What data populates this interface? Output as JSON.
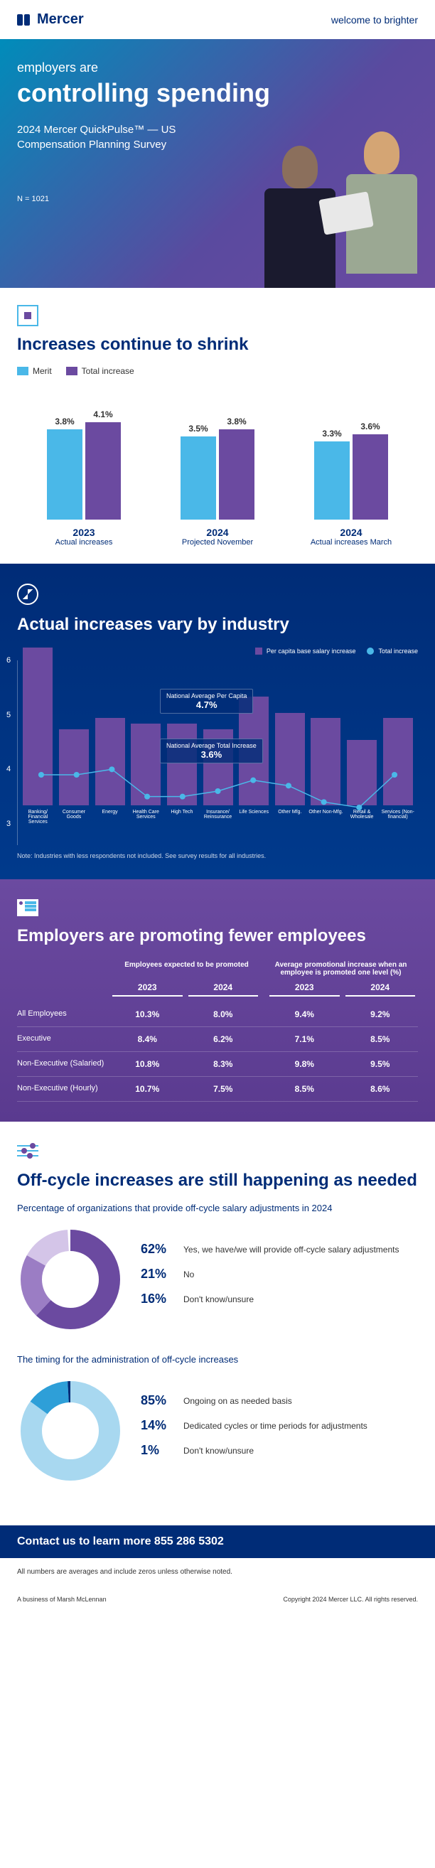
{
  "header": {
    "logo": "Mercer",
    "tagline": "welcome to brighter"
  },
  "hero": {
    "sub": "employers are",
    "title": "controlling spending",
    "desc": "2024 Mercer QuickPulse™ — US Compensation Planning Survey",
    "n": "N = 1021"
  },
  "section1": {
    "title": "Increases continue to shrink",
    "legend": {
      "merit": "Merit",
      "total": "Total increase",
      "merit_color": "#4ab8e8",
      "total_color": "#6b4aa0"
    },
    "groups": [
      {
        "year": "2023",
        "sub": "Actual increases",
        "merit": 3.8,
        "total": 4.1
      },
      {
        "year": "2024",
        "sub": "Projected November",
        "merit": 3.5,
        "total": 3.8
      },
      {
        "year": "2024",
        "sub": "Actual increases March",
        "merit": 3.3,
        "total": 3.6
      }
    ],
    "ymax": 4.5
  },
  "industry": {
    "title": "Actual increases vary by industry",
    "legend": {
      "bar": "Per capita base salary increase",
      "line": "Total increase"
    },
    "avg1": {
      "label": "National Average Per Capita",
      "val": "4.7%"
    },
    "avg2": {
      "label": "National Average Total Increase",
      "val": "3.6%"
    },
    "ymin": 3,
    "ymax": 6,
    "bar_color": "#6b4aa0",
    "line_color": "#4ab8e8",
    "data": [
      {
        "label": "Banking/ Financial Services",
        "bar": 5.9,
        "line": 3.9
      },
      {
        "label": "Consumer Goods",
        "bar": 4.4,
        "line": 3.9
      },
      {
        "label": "Energy",
        "bar": 4.6,
        "line": 4.0
      },
      {
        "label": "Health Care Services",
        "bar": 4.5,
        "line": 3.5
      },
      {
        "label": "High Tech",
        "bar": 4.5,
        "line": 3.5
      },
      {
        "label": "Insurance/ Reinsurance",
        "bar": 4.4,
        "line": 3.6
      },
      {
        "label": "Life Sciences",
        "bar": 5.0,
        "line": 3.8
      },
      {
        "label": "Other Mfg.",
        "bar": 4.7,
        "line": 3.7
      },
      {
        "label": "Other Non-Mfg.",
        "bar": 4.6,
        "line": 3.4
      },
      {
        "label": "Retail & Wholesale",
        "bar": 4.2,
        "line": 3.3
      },
      {
        "label": "Services (Non-financial)",
        "bar": 4.6,
        "line": 3.9
      }
    ],
    "note": "Note: Industries with less respondents not included. See survey results for all industries."
  },
  "promo": {
    "title": "Employers are promoting fewer employees",
    "header1": "Employees expected to be promoted",
    "header2": "Average promotional increase when an employee is promoted one level (%)",
    "years": [
      "2023",
      "2024",
      "2023",
      "2024"
    ],
    "rows": [
      {
        "label": "All Employees",
        "vals": [
          "10.3%",
          "8.0%",
          "9.4%",
          "9.2%"
        ]
      },
      {
        "label": "Executive",
        "vals": [
          "8.4%",
          "6.2%",
          "7.1%",
          "8.5%"
        ]
      },
      {
        "label": "Non-Executive (Salaried)",
        "vals": [
          "10.8%",
          "8.3%",
          "9.8%",
          "9.5%"
        ]
      },
      {
        "label": "Non-Executive (Hourly)",
        "vals": [
          "10.7%",
          "7.5%",
          "8.5%",
          "8.6%"
        ]
      }
    ]
  },
  "offcycle": {
    "title": "Off-cycle increases are still happening as needed",
    "sub1": "Percentage of organizations that provide off-cycle salary adjustments in 2024",
    "donut1": {
      "colors": [
        "#6b4aa0",
        "#9b7dc4",
        "#d4c5e8"
      ],
      "values": [
        62,
        21,
        16
      ],
      "labels": [
        "Yes, we have/we will provide off-cycle salary adjustments",
        "No",
        "Don't know/unsure"
      ]
    },
    "sub2": "The timing for the administration of off-cycle increases",
    "donut2": {
      "colors": [
        "#a8d8f0",
        "#2e9fd8",
        "#002c77"
      ],
      "values": [
        85,
        14,
        1
      ],
      "labels": [
        "Ongoing on as needed basis",
        "Dedicated cycles or time periods for adjustments",
        "Don't know/unsure"
      ]
    }
  },
  "contact": "Contact us to learn more  855 286 5302",
  "footnote": "All numbers are averages and include zeros unless otherwise noted.",
  "footer": {
    "left": "A business of Marsh McLennan",
    "right": "Copyright 2024 Mercer LLC. All rights reserved."
  }
}
